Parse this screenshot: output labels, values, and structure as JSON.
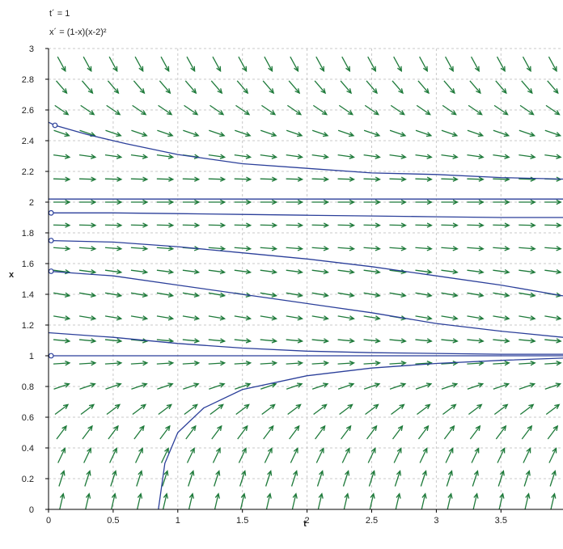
{
  "equations": {
    "t_prime": "t´ = 1",
    "x_prime": "x´ = (1-x)(x-2)²"
  },
  "chart_data": {
    "type": "line",
    "title": "",
    "xlabel": "t",
    "ylabel": "x",
    "xlim": [
      0,
      3.98
    ],
    "ylim": [
      0,
      3
    ],
    "x_ticks": [
      0,
      0.5,
      1,
      1.5,
      2,
      2.5,
      3,
      3.5
    ],
    "x_tick_labels": [
      "0",
      "0.5",
      "1",
      "1.5",
      "2",
      "2.5",
      "3",
      "3.5"
    ],
    "y_ticks": [
      0,
      0.2,
      0.4,
      0.6,
      0.8,
      1,
      1.2,
      1.4,
      1.6,
      1.8,
      2,
      2.2,
      2.4,
      2.6,
      2.8,
      3
    ],
    "y_tick_labels": [
      "0",
      "0.2",
      "0.4",
      "0.6",
      "0.8",
      "1",
      "1.2",
      "1.4",
      "1.6",
      "1.8",
      "2",
      "2.2",
      "2.4",
      "2.6",
      "2.8",
      "3"
    ],
    "grid": true,
    "direction_field": {
      "t_values": [
        0.05,
        0.25,
        0.45,
        0.65,
        0.85,
        1.05,
        1.25,
        1.45,
        1.65,
        1.85,
        2.05,
        2.25,
        2.45,
        2.65,
        2.85,
        3.05,
        3.25,
        3.45,
        3.65,
        3.85
      ],
      "x_values": [
        0.05,
        0.2,
        0.35,
        0.5,
        0.65,
        0.8,
        0.95,
        1.1,
        1.25,
        1.4,
        1.55,
        1.7,
        1.85,
        2.0,
        2.15,
        2.3,
        2.45,
        2.6,
        2.75,
        2.9
      ],
      "color": "#1e7a3a"
    },
    "solution_color": "#2b3f9a",
    "initial_points": [
      {
        "t": 0.05,
        "x": 2.5
      },
      {
        "t": 0.02,
        "x": 1.93
      },
      {
        "t": 0.02,
        "x": 1.75
      },
      {
        "t": 0.02,
        "x": 1.55
      },
      {
        "t": 0.02,
        "x": 1.0
      }
    ],
    "series": [
      {
        "x": [
          0.0,
          0.05,
          0.3,
          0.6,
          1.0,
          1.5,
          2.0,
          2.5,
          3.0,
          3.5,
          3.98
        ],
        "y": [
          2.52,
          2.5,
          2.44,
          2.38,
          2.31,
          2.25,
          2.22,
          2.19,
          2.18,
          2.16,
          2.15
        ]
      },
      {
        "x": [
          0.0,
          3.98
        ],
        "y": [
          2.02,
          2.02
        ]
      },
      {
        "x": [
          0.0,
          0.5,
          1.0,
          1.5,
          2.0,
          2.5,
          3.0,
          3.5,
          3.98
        ],
        "y": [
          1.93,
          1.93,
          1.925,
          1.92,
          1.915,
          1.91,
          1.905,
          1.9,
          1.9
        ]
      },
      {
        "x": [
          0.0,
          0.5,
          1.0,
          1.5,
          2.0,
          2.5,
          3.0,
          3.5,
          3.98
        ],
        "y": [
          1.75,
          1.74,
          1.71,
          1.67,
          1.63,
          1.58,
          1.52,
          1.46,
          1.39
        ]
      },
      {
        "x": [
          0.0,
          0.5,
          1.0,
          1.5,
          2.0,
          2.5,
          3.0,
          3.5,
          3.98
        ],
        "y": [
          1.55,
          1.52,
          1.46,
          1.4,
          1.34,
          1.28,
          1.21,
          1.16,
          1.12
        ]
      },
      {
        "x": [
          0.0,
          0.5,
          1.0,
          1.5,
          2.0,
          2.5,
          3.0,
          3.5,
          3.98
        ],
        "y": [
          1.15,
          1.12,
          1.08,
          1.05,
          1.03,
          1.02,
          1.015,
          1.01,
          1.01
        ]
      },
      {
        "x": [
          0.0,
          3.98
        ],
        "y": [
          1.0,
          1.0
        ]
      },
      {
        "x": [
          0.85,
          0.9,
          1.0,
          1.2,
          1.5,
          2.0,
          2.5,
          3.0,
          3.5,
          3.98
        ],
        "y": [
          0.0,
          0.3,
          0.5,
          0.66,
          0.78,
          0.87,
          0.92,
          0.95,
          0.97,
          0.985
        ]
      }
    ]
  }
}
